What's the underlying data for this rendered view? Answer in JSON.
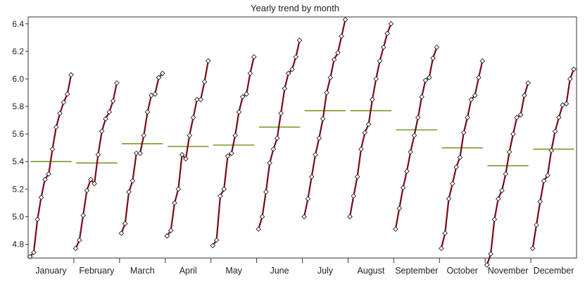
{
  "chart_data": {
    "type": "line",
    "title": "Yearly trend by month",
    "xlabel": "",
    "ylabel": "",
    "ylim": [
      4.7,
      6.45
    ],
    "yticks": [
      4.8,
      5.0,
      5.2,
      5.4,
      5.6,
      5.8,
      6.0,
      6.2,
      6.4
    ],
    "ytick_labels": [
      "4.8",
      "5.0",
      "5.2",
      "5.4",
      "5.6",
      "5.8",
      "6.0",
      "6.2",
      "6.4"
    ],
    "grid": false,
    "legend": "none",
    "colors": {
      "line": "#7a0a14",
      "mean": "#7a9a2a",
      "marker_fill": "#ffffff",
      "marker_stroke": "#222222",
      "axis": "#333333"
    },
    "categories": [
      "January",
      "February",
      "March",
      "April",
      "May",
      "June",
      "July",
      "August",
      "September",
      "October",
      "November",
      "December"
    ],
    "series": [
      {
        "category": "January",
        "values": [
          4.71,
          4.74,
          4.98,
          5.14,
          5.27,
          5.31,
          5.49,
          5.65,
          5.75,
          5.83,
          5.89,
          6.03
        ],
        "mean": 5.4
      },
      {
        "category": "February",
        "values": [
          4.77,
          4.83,
          5.01,
          5.19,
          5.27,
          5.24,
          5.45,
          5.62,
          5.71,
          5.76,
          5.84,
          5.97
        ],
        "mean": 5.39
      },
      {
        "category": "March",
        "values": [
          4.88,
          4.95,
          5.18,
          5.26,
          5.46,
          5.46,
          5.59,
          5.76,
          5.88,
          5.89,
          6.01,
          6.04
        ],
        "mean": 5.53
      },
      {
        "category": "April",
        "values": [
          4.86,
          4.9,
          5.1,
          5.2,
          5.45,
          5.42,
          5.59,
          5.72,
          5.85,
          5.85,
          5.98,
          6.13
        ],
        "mean": 5.51
      },
      {
        "category": "May",
        "values": [
          4.79,
          4.83,
          5.15,
          5.2,
          5.44,
          5.46,
          5.59,
          5.76,
          5.87,
          5.89,
          6.04,
          6.16
        ],
        "mean": 5.52
      },
      {
        "category": "June",
        "values": [
          4.91,
          5.0,
          5.18,
          5.39,
          5.49,
          5.57,
          5.75,
          5.93,
          6.04,
          6.07,
          6.16,
          6.28
        ],
        "mean": 5.65
      },
      {
        "category": "July",
        "values": [
          5.0,
          5.13,
          5.29,
          5.45,
          5.57,
          5.71,
          5.9,
          6.01,
          6.14,
          6.19,
          6.31,
          6.43
        ],
        "mean": 5.77
      },
      {
        "category": "August",
        "values": [
          5.0,
          5.15,
          5.29,
          5.49,
          5.61,
          5.67,
          5.85,
          6.0,
          6.13,
          6.23,
          6.33,
          6.4
        ],
        "mean": 5.77
      },
      {
        "category": "September",
        "values": [
          4.91,
          5.06,
          5.21,
          5.33,
          5.47,
          5.59,
          5.72,
          5.87,
          5.99,
          6.01,
          6.15,
          6.23
        ],
        "mean": 5.63
      },
      {
        "category": "October",
        "values": [
          4.77,
          4.88,
          5.13,
          5.24,
          5.36,
          5.43,
          5.61,
          5.72,
          5.85,
          5.88,
          6.01,
          6.13
        ],
        "mean": 5.5
      },
      {
        "category": "November",
        "values": [
          4.65,
          4.73,
          4.98,
          5.13,
          5.19,
          5.31,
          5.47,
          5.6,
          5.72,
          5.74,
          5.88,
          5.97
        ],
        "mean": 5.37
      },
      {
        "category": "December",
        "values": [
          4.77,
          4.94,
          5.11,
          5.26,
          5.3,
          5.48,
          5.62,
          5.72,
          5.81,
          5.82,
          6.0,
          6.07
        ],
        "mean": 5.49
      }
    ]
  }
}
